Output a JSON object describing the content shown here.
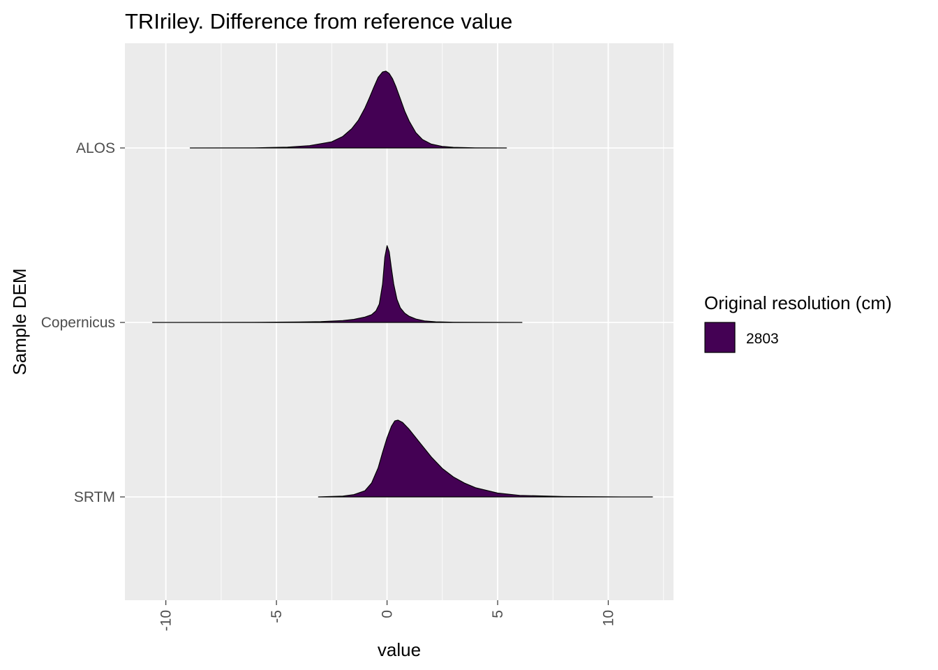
{
  "chart_data": {
    "type": "ridgeline-density",
    "title": "TRIriley. Difference from reference value",
    "xlabel": "value",
    "ylabel": "Sample DEM",
    "xlim": [
      -11.85,
      12.95
    ],
    "x_ticks": [
      -10,
      -5,
      0,
      5,
      10
    ],
    "x_tick_labels": [
      "-10",
      "-5",
      "0",
      "5",
      "10"
    ],
    "categories": [
      "ALOS",
      "Copernicus",
      "SRTM"
    ],
    "grid": true,
    "panel_background": "#ebebeb",
    "grid_color": "#ffffff",
    "fill_color": "#440154",
    "outline_color": "#000000",
    "legend": {
      "title": "Original resolution (cm)",
      "placement": "right",
      "entries": [
        {
          "label": "2803",
          "color": "#440154"
        }
      ]
    },
    "series": [
      {
        "category": "ALOS",
        "x": [
          -8.9,
          -6.0,
          -4.5,
          -3.5,
          -2.5,
          -2.0,
          -1.6,
          -1.3,
          -1.0,
          -0.8,
          -0.6,
          -0.4,
          -0.2,
          -0.05,
          0.1,
          0.25,
          0.4,
          0.6,
          0.8,
          1.0,
          1.3,
          1.6,
          2.0,
          2.5,
          3.0,
          4.0,
          5.4
        ],
        "density": [
          0.0,
          0.002,
          0.01,
          0.03,
          0.08,
          0.15,
          0.25,
          0.36,
          0.52,
          0.65,
          0.79,
          0.92,
          0.99,
          1.0,
          0.97,
          0.9,
          0.8,
          0.64,
          0.48,
          0.35,
          0.2,
          0.11,
          0.05,
          0.02,
          0.008,
          0.002,
          0.0
        ]
      },
      {
        "category": "Copernicus",
        "x": [
          -10.6,
          -6.0,
          -4.0,
          -3.0,
          -2.0,
          -1.5,
          -1.0,
          -0.7,
          -0.5,
          -0.35,
          -0.2,
          -0.1,
          0.0,
          0.1,
          0.2,
          0.3,
          0.45,
          0.6,
          0.8,
          1.0,
          1.3,
          1.7,
          2.2,
          3.0,
          4.5,
          6.1
        ],
        "density": [
          0.0,
          0.001,
          0.005,
          0.01,
          0.025,
          0.04,
          0.07,
          0.1,
          0.15,
          0.24,
          0.5,
          0.85,
          1.0,
          0.92,
          0.7,
          0.5,
          0.3,
          0.19,
          0.12,
          0.08,
          0.045,
          0.02,
          0.008,
          0.003,
          0.001,
          0.0
        ]
      },
      {
        "category": "SRTM",
        "x": [
          -3.1,
          -2.0,
          -1.5,
          -1.0,
          -0.7,
          -0.4,
          -0.2,
          0.0,
          0.2,
          0.35,
          0.5,
          0.7,
          1.0,
          1.5,
          2.0,
          2.5,
          3.0,
          3.5,
          4.0,
          5.0,
          6.0,
          8.0,
          10.0,
          12.0
        ],
        "density": [
          0.0,
          0.01,
          0.03,
          0.08,
          0.18,
          0.38,
          0.58,
          0.77,
          0.92,
          0.99,
          1.0,
          0.97,
          0.88,
          0.7,
          0.52,
          0.37,
          0.26,
          0.18,
          0.12,
          0.05,
          0.02,
          0.005,
          0.001,
          0.0
        ]
      }
    ]
  }
}
